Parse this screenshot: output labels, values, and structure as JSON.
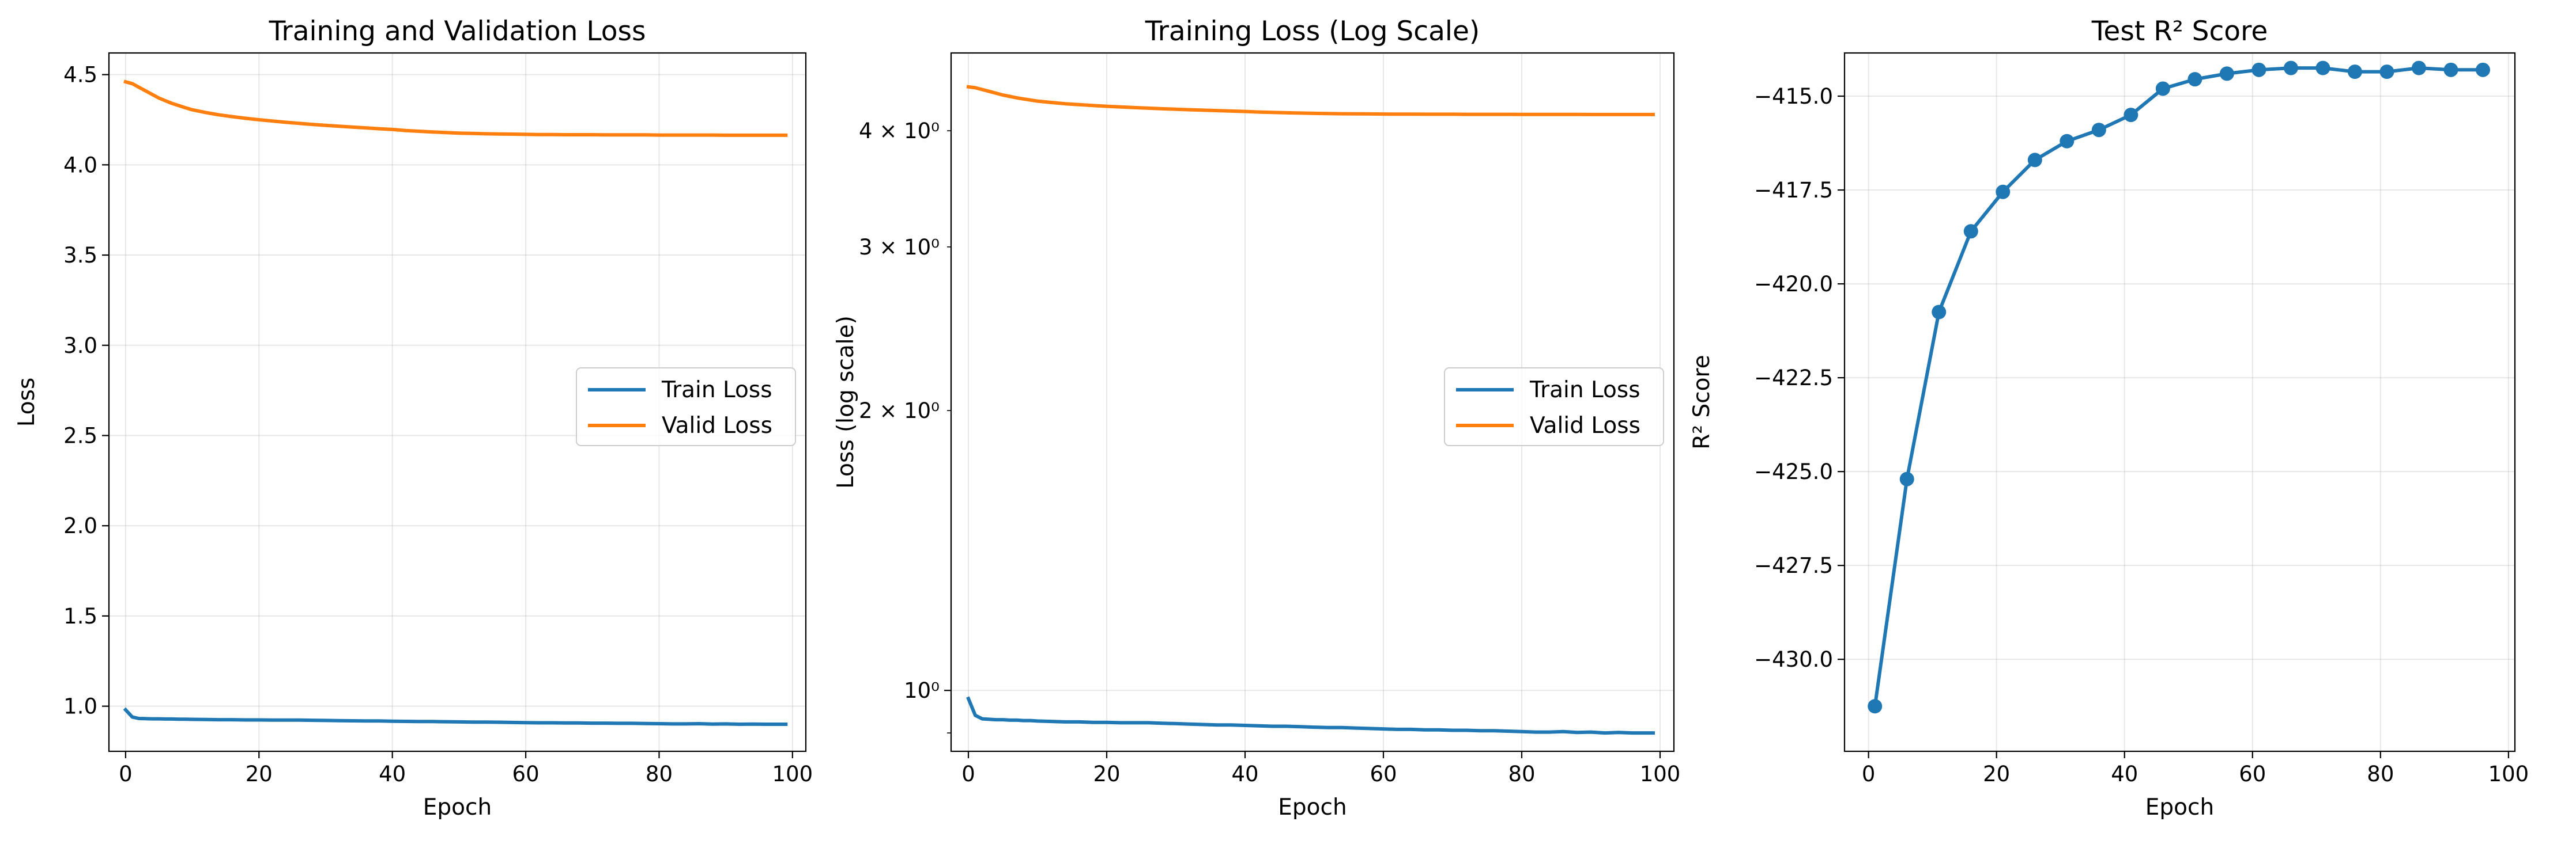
{
  "chart_data": [
    {
      "type": "line",
      "title": "Training and Validation Loss",
      "xlabel": "Epoch",
      "ylabel": "Loss",
      "xlim": [
        -2.5,
        102
      ],
      "ylim": [
        0.75,
        4.62
      ],
      "xticks": [
        0,
        20,
        40,
        60,
        80,
        100
      ],
      "xtick_labels": [
        "0",
        "20",
        "40",
        "60",
        "80",
        "100"
      ],
      "yticks": [
        1.0,
        1.5,
        2.0,
        2.5,
        3.0,
        3.5,
        4.0,
        4.5
      ],
      "ytick_labels": [
        "1.0",
        "1.5",
        "2.0",
        "2.5",
        "3.0",
        "3.5",
        "4.0",
        "4.5"
      ],
      "grid": true,
      "legend": "center-right",
      "x": [
        0,
        1,
        2,
        3,
        4,
        5,
        6,
        7,
        8,
        9,
        10,
        12,
        14,
        16,
        18,
        20,
        22,
        24,
        26,
        28,
        30,
        32,
        34,
        36,
        38,
        40,
        42,
        44,
        46,
        48,
        50,
        52,
        54,
        56,
        58,
        60,
        62,
        64,
        66,
        68,
        70,
        72,
        74,
        76,
        78,
        80,
        82,
        84,
        86,
        88,
        90,
        92,
        94,
        96,
        98,
        99
      ],
      "series": [
        {
          "name": "Train Loss",
          "color": "#1f77b4",
          "values": [
            0.98,
            0.94,
            0.932,
            0.931,
            0.93,
            0.93,
            0.929,
            0.929,
            0.928,
            0.928,
            0.927,
            0.926,
            0.925,
            0.925,
            0.924,
            0.924,
            0.923,
            0.923,
            0.923,
            0.922,
            0.921,
            0.92,
            0.919,
            0.918,
            0.918,
            0.917,
            0.916,
            0.915,
            0.915,
            0.914,
            0.913,
            0.912,
            0.912,
            0.911,
            0.91,
            0.909,
            0.908,
            0.908,
            0.907,
            0.907,
            0.906,
            0.906,
            0.905,
            0.905,
            0.904,
            0.903,
            0.902,
            0.902,
            0.903,
            0.901,
            0.902,
            0.9,
            0.901,
            0.9,
            0.9,
            0.9
          ]
        },
        {
          "name": "Valid Loss",
          "color": "#ff7f0e",
          "values": [
            4.46,
            4.45,
            4.43,
            4.41,
            4.39,
            4.37,
            4.355,
            4.34,
            4.328,
            4.316,
            4.305,
            4.29,
            4.277,
            4.267,
            4.258,
            4.25,
            4.243,
            4.236,
            4.23,
            4.224,
            4.219,
            4.214,
            4.209,
            4.205,
            4.2,
            4.196,
            4.19,
            4.186,
            4.182,
            4.179,
            4.176,
            4.174,
            4.172,
            4.171,
            4.17,
            4.169,
            4.168,
            4.168,
            4.167,
            4.167,
            4.167,
            4.166,
            4.166,
            4.166,
            4.166,
            4.165,
            4.165,
            4.165,
            4.165,
            4.165,
            4.164,
            4.164,
            4.164,
            4.164,
            4.164,
            4.164
          ]
        }
      ]
    },
    {
      "type": "line",
      "title": "Training Loss (Log Scale)",
      "xlabel": "Epoch",
      "ylabel": "Loss (log scale)",
      "yscale": "log",
      "xlim": [
        -2.5,
        102
      ],
      "ylim": [
        0.86,
        4.85
      ],
      "xticks": [
        0,
        20,
        40,
        60,
        80,
        100
      ],
      "xtick_labels": [
        "0",
        "20",
        "40",
        "60",
        "80",
        "100"
      ],
      "yticks_major": [
        1
      ],
      "yticks_major_labels": [
        "10⁰"
      ],
      "yticks_minor": [
        2,
        3,
        4
      ],
      "yticks_minor_labels": [
        "2 × 10⁰",
        "3 × 10⁰",
        "4 × 10⁰"
      ],
      "yticks_unlabeled_minor": [
        0.9
      ],
      "grid": true,
      "legend": "center-right",
      "x": [
        0,
        1,
        2,
        3,
        4,
        5,
        6,
        7,
        8,
        9,
        10,
        12,
        14,
        16,
        18,
        20,
        22,
        24,
        26,
        28,
        30,
        32,
        34,
        36,
        38,
        40,
        42,
        44,
        46,
        48,
        50,
        52,
        54,
        56,
        58,
        60,
        62,
        64,
        66,
        68,
        70,
        72,
        74,
        76,
        78,
        80,
        82,
        84,
        86,
        88,
        90,
        92,
        94,
        96,
        98,
        99
      ],
      "series": [
        {
          "name": "Train Loss",
          "color": "#1f77b4",
          "values": [
            0.98,
            0.94,
            0.932,
            0.931,
            0.93,
            0.93,
            0.929,
            0.929,
            0.928,
            0.928,
            0.927,
            0.926,
            0.925,
            0.925,
            0.924,
            0.924,
            0.923,
            0.923,
            0.923,
            0.922,
            0.921,
            0.92,
            0.919,
            0.918,
            0.918,
            0.917,
            0.916,
            0.915,
            0.915,
            0.914,
            0.913,
            0.912,
            0.912,
            0.911,
            0.91,
            0.909,
            0.908,
            0.908,
            0.907,
            0.907,
            0.906,
            0.906,
            0.905,
            0.905,
            0.904,
            0.903,
            0.902,
            0.902,
            0.903,
            0.901,
            0.902,
            0.9,
            0.901,
            0.9,
            0.9,
            0.9
          ]
        },
        {
          "name": "Valid Loss",
          "color": "#ff7f0e",
          "values": [
            4.46,
            4.45,
            4.43,
            4.41,
            4.39,
            4.37,
            4.355,
            4.34,
            4.328,
            4.316,
            4.305,
            4.29,
            4.277,
            4.267,
            4.258,
            4.25,
            4.243,
            4.236,
            4.23,
            4.224,
            4.219,
            4.214,
            4.209,
            4.205,
            4.2,
            4.196,
            4.19,
            4.186,
            4.182,
            4.179,
            4.176,
            4.174,
            4.172,
            4.171,
            4.17,
            4.169,
            4.168,
            4.168,
            4.167,
            4.167,
            4.167,
            4.166,
            4.166,
            4.166,
            4.166,
            4.165,
            4.165,
            4.165,
            4.165,
            4.165,
            4.164,
            4.164,
            4.164,
            4.164,
            4.164,
            4.164
          ]
        }
      ]
    },
    {
      "type": "line",
      "title": "Test R² Score",
      "xlabel": "Epoch",
      "ylabel": "R² Score",
      "xlim": [
        -3.75,
        101
      ],
      "ylim": [
        -432.45,
        -413.85
      ],
      "xticks": [
        0,
        20,
        40,
        60,
        80,
        100
      ],
      "xtick_labels": [
        "0",
        "20",
        "40",
        "60",
        "80",
        "100"
      ],
      "yticks": [
        -430.0,
        -427.5,
        -425.0,
        -422.5,
        -420.0,
        -417.5,
        -415.0
      ],
      "ytick_labels": [
        "−430.0",
        "−427.5",
        "−425.0",
        "−422.5",
        "−420.0",
        "−417.5",
        "−415.0"
      ],
      "grid": true,
      "markers": true,
      "x": [
        1,
        6,
        11,
        16,
        21,
        26,
        31,
        36,
        41,
        46,
        51,
        56,
        61,
        66,
        71,
        76,
        81,
        86,
        91,
        96
      ],
      "series": [
        {
          "color": "#1f77b4",
          "values": [
            -431.25,
            -425.2,
            -420.75,
            -418.6,
            -417.55,
            -416.7,
            -416.2,
            -415.9,
            -415.5,
            -414.8,
            -414.55,
            -414.4,
            -414.3,
            -414.25,
            -414.25,
            -414.35,
            -414.35,
            -414.25,
            -414.3,
            -414.3
          ]
        }
      ]
    }
  ]
}
